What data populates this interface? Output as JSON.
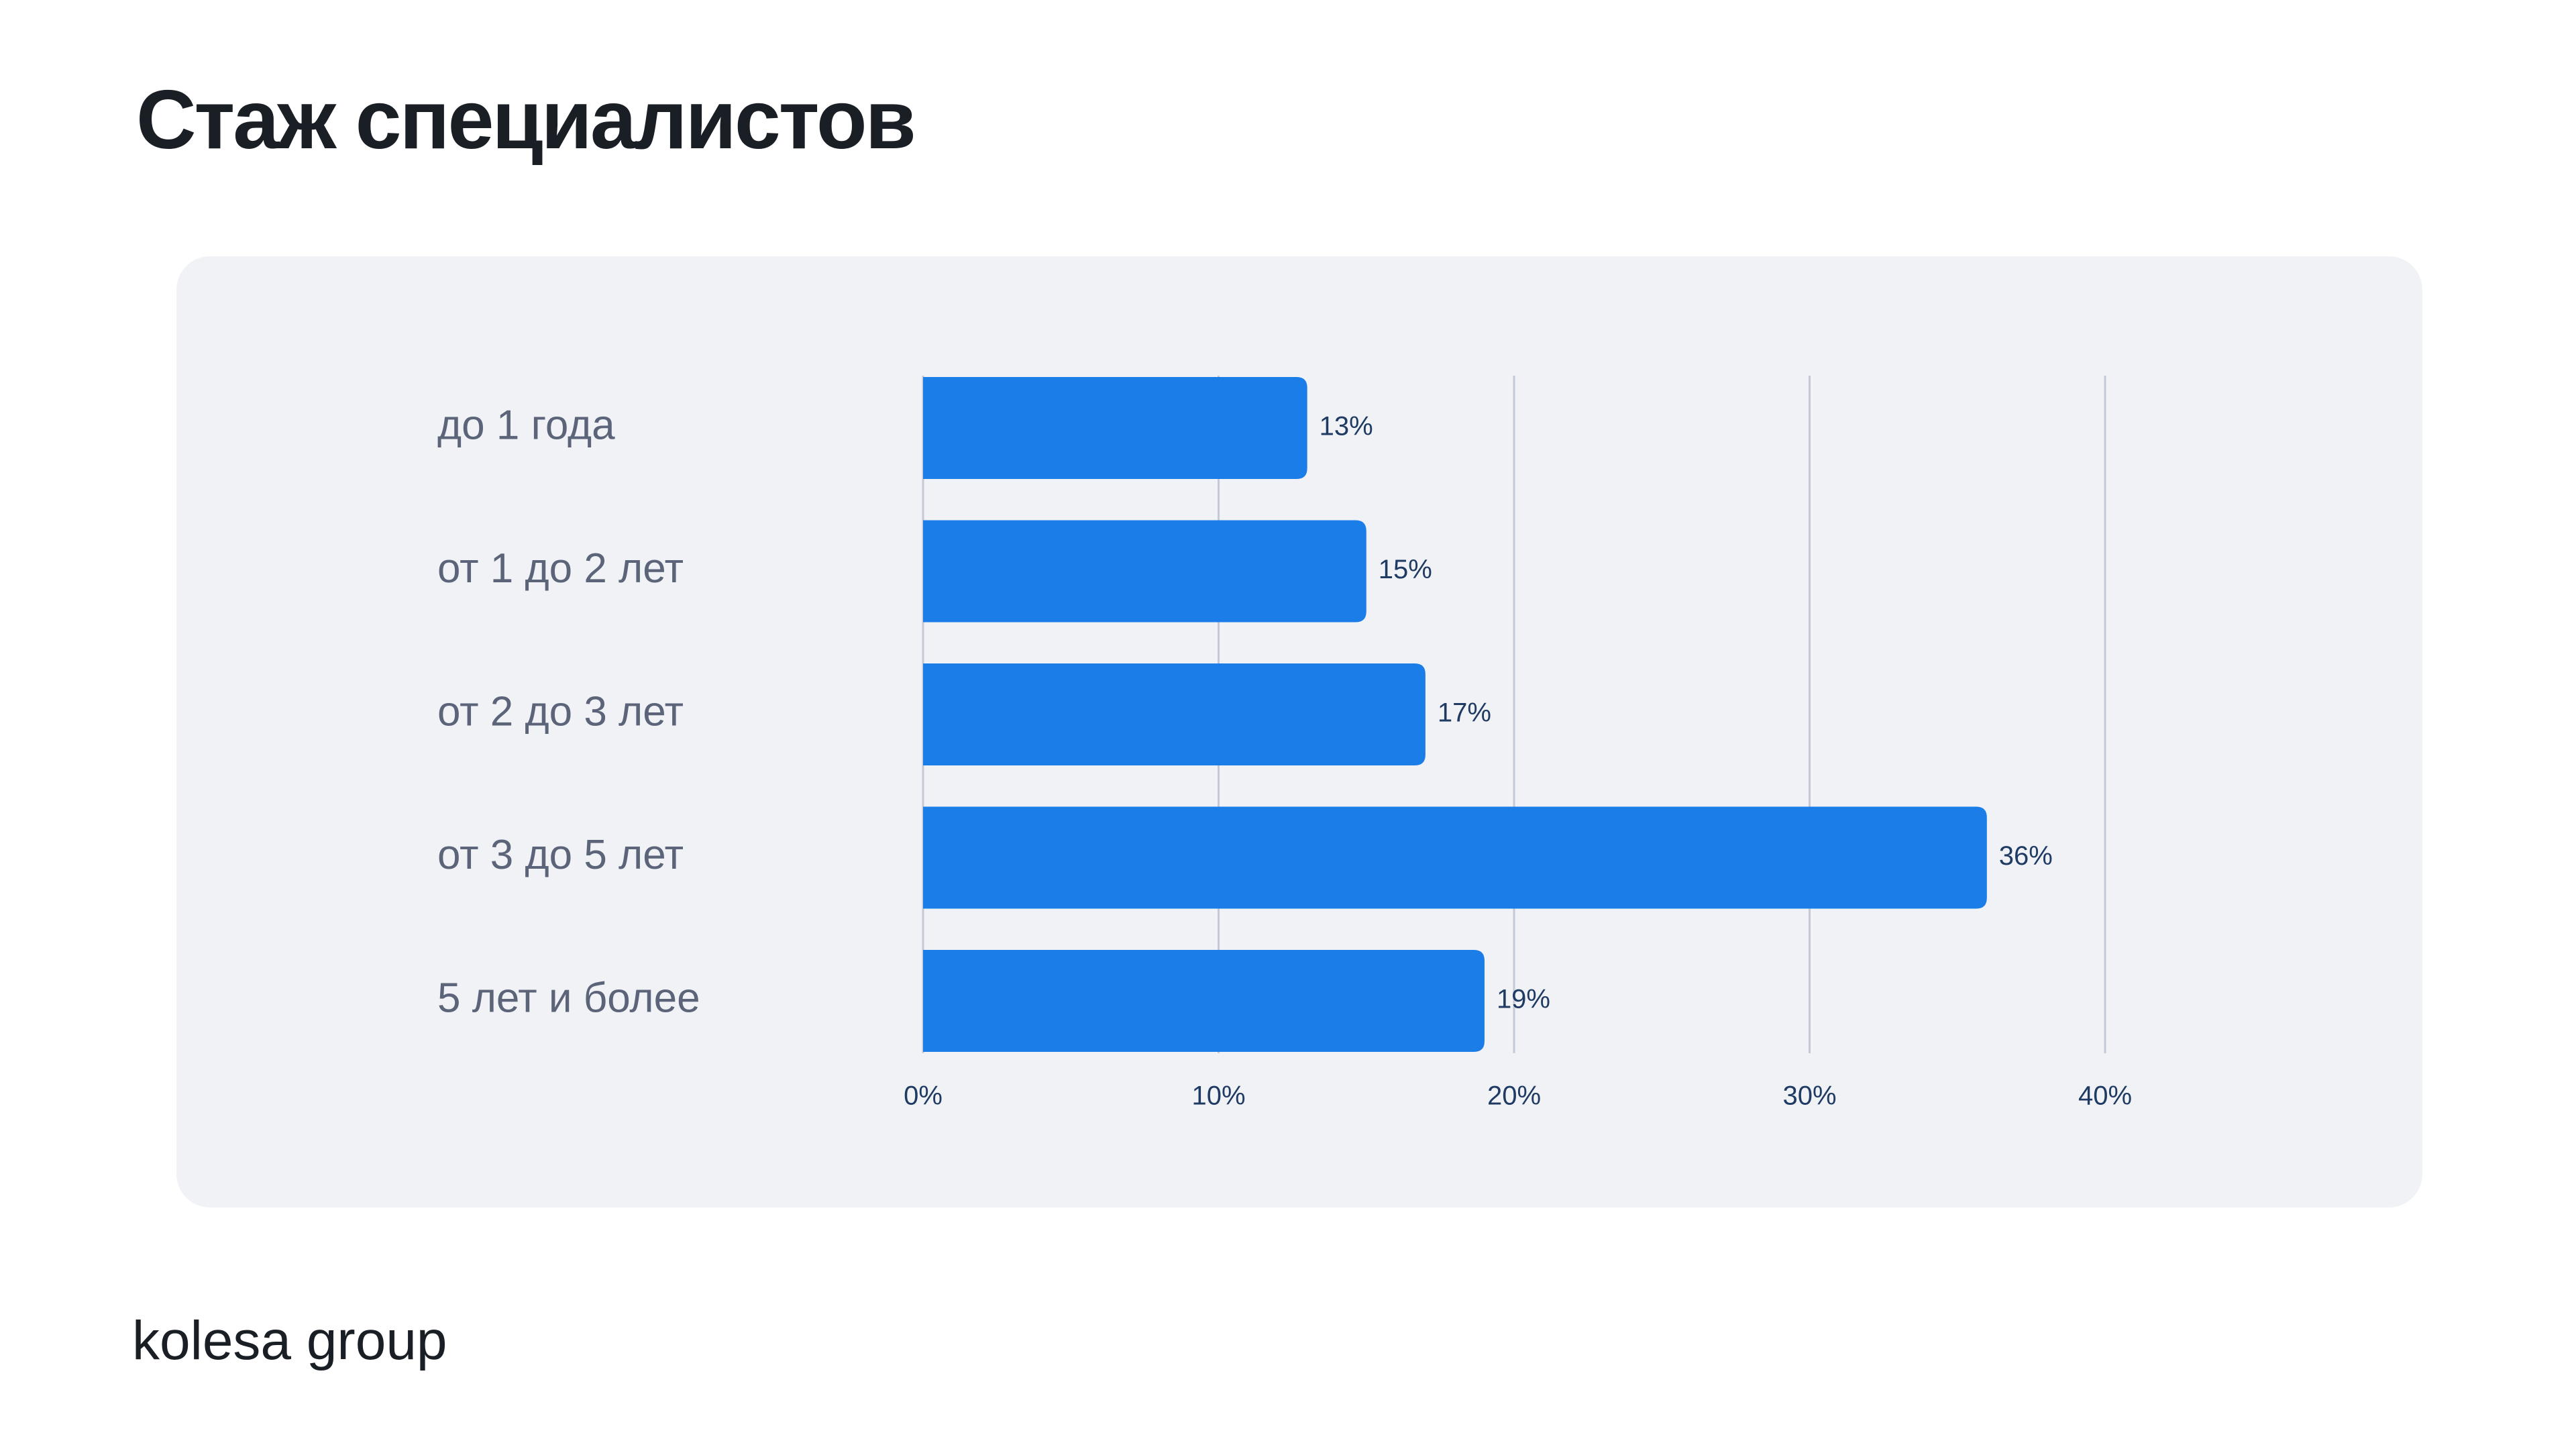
{
  "page": {
    "title": "Стаж специалистов",
    "brand": "kolesa group"
  },
  "chart_data": {
    "type": "bar",
    "orientation": "horizontal",
    "categories": [
      "до 1 года",
      "от 1 до 2 лет",
      "от 2 до 3 лет",
      "от 3 до 5 лет",
      "5 лет и более"
    ],
    "values": [
      13,
      15,
      17,
      36,
      19
    ],
    "value_labels": [
      "13%",
      "15%",
      "17%",
      "36%",
      "19%"
    ],
    "xlim": [
      0,
      40
    ],
    "xticks": [
      0,
      10,
      20,
      30,
      40
    ],
    "xtick_labels": [
      "0%",
      "10%",
      "20%",
      "30%",
      "40%"
    ],
    "grid": true,
    "bar_color": "#1a7de8",
    "grid_color": "#c3cad6",
    "title": "",
    "xlabel": "",
    "ylabel": ""
  }
}
